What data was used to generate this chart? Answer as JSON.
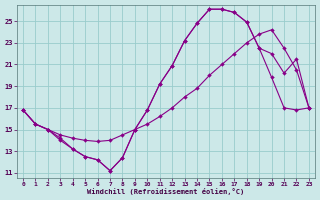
{
  "background_color": "#cce8e8",
  "grid_color": "#99cccc",
  "line_color": "#880088",
  "xlabel": "Windchill (Refroidissement éolien,°C)",
  "xlim": [
    -0.5,
    23.5
  ],
  "ylim": [
    10.5,
    26.5
  ],
  "yticks": [
    11,
    13,
    15,
    17,
    19,
    21,
    23,
    25
  ],
  "xticks": [
    0,
    1,
    2,
    3,
    4,
    5,
    6,
    7,
    8,
    9,
    10,
    11,
    12,
    13,
    14,
    15,
    16,
    17,
    18,
    19,
    20,
    21,
    22,
    23
  ],
  "series1_x": [
    0,
    1,
    2,
    3,
    4,
    5,
    6,
    7,
    8,
    9,
    10,
    11,
    12,
    13,
    14,
    15,
    16,
    17,
    18,
    19,
    20,
    21,
    22,
    23
  ],
  "series1_y": [
    16.8,
    15.5,
    15.0,
    14.2,
    13.2,
    12.5,
    12.2,
    11.2,
    12.4,
    15.0,
    16.8,
    19.2,
    20.9,
    23.2,
    24.8,
    26.1,
    26.1,
    25.8,
    24.9,
    22.5,
    19.8,
    17.0,
    16.8,
    17.0
  ],
  "series2_x": [
    0,
    1,
    2,
    3,
    4,
    5,
    6,
    7,
    8,
    9,
    10,
    11,
    12,
    13,
    14,
    15,
    16,
    17,
    18,
    19,
    20,
    21,
    22,
    23
  ],
  "series2_y": [
    16.8,
    15.5,
    15.0,
    14.5,
    14.2,
    14.0,
    13.9,
    14.0,
    14.5,
    15.0,
    15.5,
    16.2,
    17.0,
    18.0,
    18.8,
    20.0,
    21.0,
    22.0,
    23.0,
    23.8,
    24.2,
    22.5,
    20.5,
    17.0
  ],
  "series3_x": [
    0,
    1,
    2,
    3,
    4,
    5,
    6,
    7,
    8,
    9,
    10,
    11,
    12,
    13,
    14,
    15,
    16,
    17,
    18,
    19,
    20,
    21,
    22,
    23
  ],
  "series3_y": [
    16.8,
    15.5,
    15.0,
    14.0,
    13.2,
    12.5,
    12.2,
    11.2,
    12.4,
    15.0,
    16.8,
    19.2,
    20.9,
    23.2,
    24.8,
    26.1,
    26.1,
    25.8,
    24.9,
    22.5,
    22.0,
    20.2,
    21.5,
    17.0
  ]
}
